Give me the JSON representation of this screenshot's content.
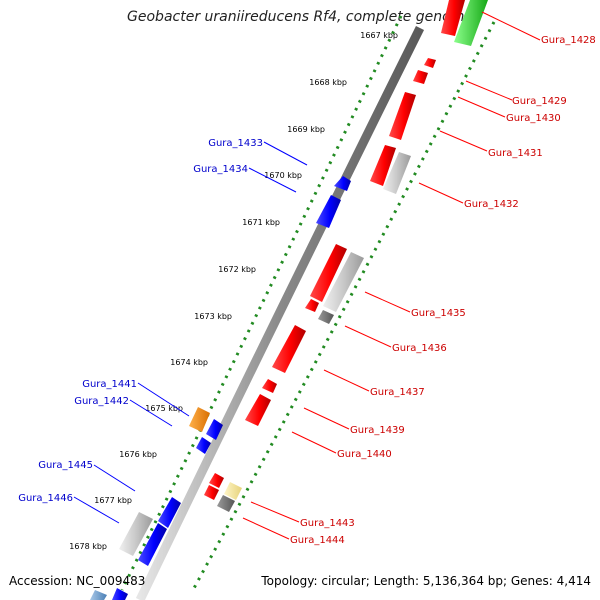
{
  "title": "Geobacter uraniireducens Rf4, complete genome",
  "footer": {
    "accession": "Accession: NC_009483",
    "summary": "Topology: circular; Length: 5,136,364 bp; Genes: 4,414"
  },
  "ticks": [
    "1667 kbp",
    "1668 kbp",
    "1669 kbp",
    "1670 kbp",
    "1671 kbp",
    "1672 kbp",
    "1673 kbp",
    "1674 kbp",
    "1675 kbp",
    "1676 kbp",
    "1677 kbp",
    "1678 kbp"
  ],
  "genes_left": [
    "Gura_1433",
    "Gura_1434",
    "Gura_1441",
    "Gura_1442",
    "Gura_1445",
    "Gura_1446"
  ],
  "genes_right": [
    "Gura_1428",
    "Gura_1429",
    "Gura_1430",
    "Gura_1431",
    "Gura_1432",
    "Gura_1435",
    "Gura_1436",
    "Gura_1437",
    "Gura_1439",
    "Gura_1440",
    "Gura_1443",
    "Gura_1444"
  ],
  "colors": {
    "forward_strand": "#ff0000",
    "reverse_strand": "#0000ff",
    "label_forward": "#cc0000",
    "label_reverse": "#0000cc",
    "tick_dots": "#228b22",
    "backbone": "#808080",
    "other_feature": "#c0c0c0",
    "misc_feature_orange": "#ff8c00",
    "misc_feature_yellow": "#f0e08a",
    "misc_feature_green": "#22cc22"
  }
}
